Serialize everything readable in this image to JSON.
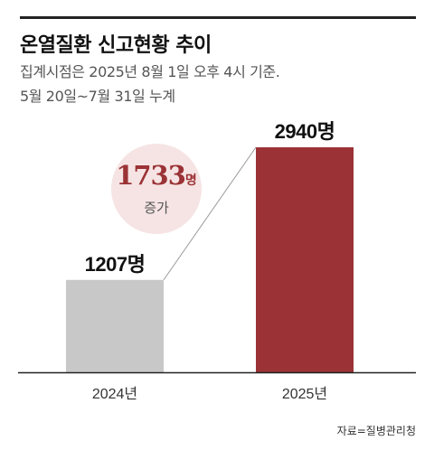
{
  "title": "온열질환 신고현황 추이",
  "subtitle_lines": [
    "집계시점은 2025년 8월 1일 오후 4시 기준.",
    "5월 20일~7월 31일 누계"
  ],
  "source": "자료=질병관리청",
  "unit": "명",
  "increase": {
    "value": "1733",
    "unit": "명",
    "caption": "증가"
  },
  "colors": {
    "bar_2024": "#c8c8c8",
    "bar_2025": "#9b3235",
    "badge_bg": "#f6e4e4",
    "accent": "#9b3235"
  },
  "chart_data": {
    "type": "bar",
    "categories": [
      "2024년",
      "2025년"
    ],
    "values": [
      1207,
      2940
    ],
    "data_labels": [
      "1207명",
      "2940명"
    ],
    "title": "온열질환 신고현황 추이",
    "xlabel": "",
    "ylabel": "",
    "ylim": [
      0,
      2940
    ],
    "grid": false,
    "legend": "none"
  }
}
